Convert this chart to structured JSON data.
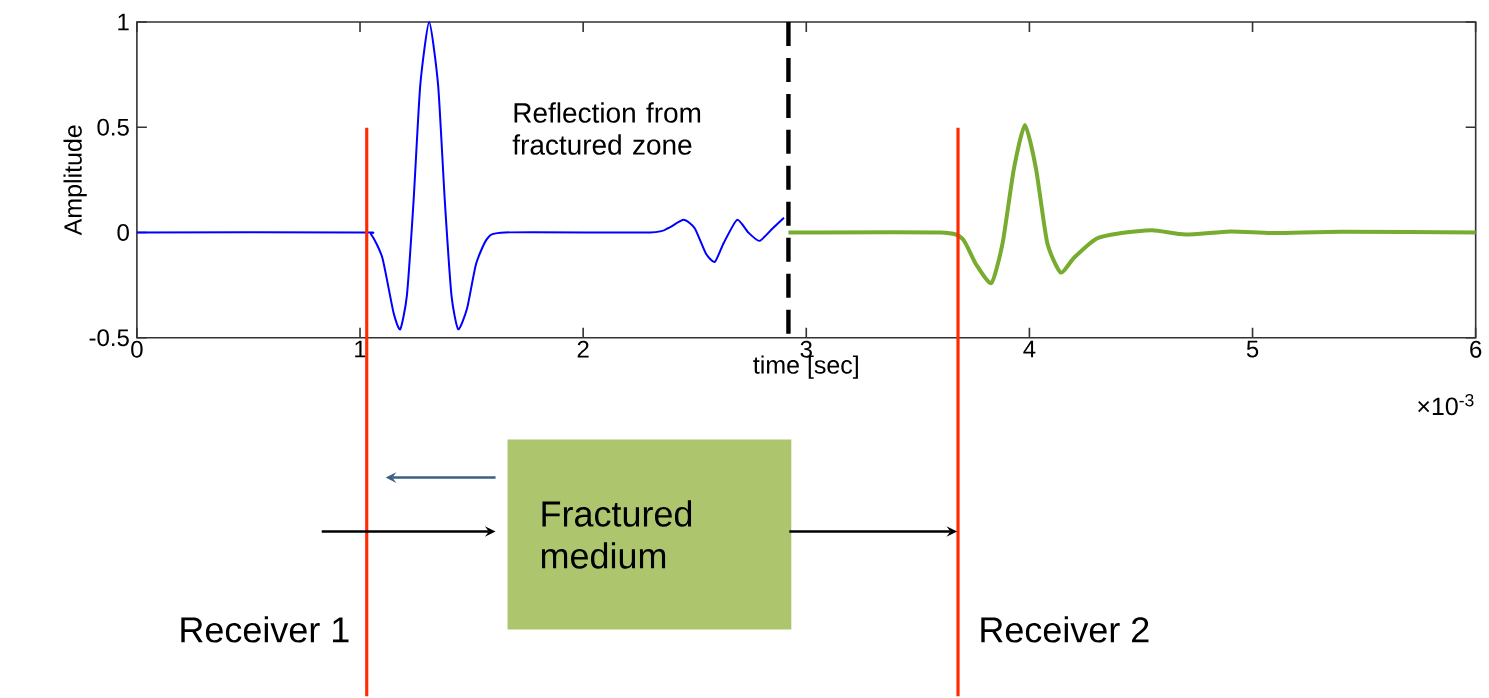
{
  "chart_data": {
    "type": "line",
    "xlabel": "time [sec]",
    "ylabel": "Amplitude",
    "series": [
      {
        "color": "#0000ff",
        "x": [
          0,
          1,
          1.05,
          1.1,
          1.15,
          1.18,
          1.21,
          1.24,
          1.27,
          1.31,
          1.35,
          1.38,
          1.41,
          1.44,
          1.48,
          1.52,
          1.57,
          1.65,
          2.3,
          2.38,
          2.45,
          2.5,
          2.55,
          2.59,
          2.63,
          2.69,
          2.74,
          2.79,
          2.85,
          2.9
        ],
        "values": [
          0,
          0,
          -0.01,
          -0.12,
          -0.38,
          -0.46,
          -0.3,
          0.15,
          0.7,
          1,
          0.7,
          0.15,
          -0.3,
          -0.46,
          -0.36,
          -0.15,
          -0.03,
          0,
          0,
          0.02,
          0.06,
          0.02,
          -0.1,
          -0.14,
          -0.05,
          0.06,
          0,
          -0.04,
          0.02,
          0.07
        ]
      },
      {
        "color": "#77ac30",
        "x": [
          2.92,
          3.6,
          3.7,
          3.76,
          3.83,
          3.88,
          3.93,
          3.98,
          4.03,
          4.08,
          4.14,
          4.2,
          4.3,
          4.4,
          4.55,
          4.7,
          4.9,
          5.1,
          5.4,
          6
        ],
        "values": [
          0,
          0,
          -0.03,
          -0.15,
          -0.24,
          -0.05,
          0.3,
          0.51,
          0.3,
          -0.05,
          -0.19,
          -0.12,
          -0.03,
          -0.005,
          0.01,
          -0.01,
          0.005,
          -0.003,
          0.003,
          0
        ]
      }
    ],
    "xlim": [
      0,
      6
    ],
    "xticks": [
      0,
      1,
      2,
      3,
      4,
      5,
      6
    ],
    "ylim": [
      -0.5,
      1
    ],
    "yticks": [
      -0.5,
      0,
      0.5,
      1
    ],
    "ref_lines": [
      {
        "axis": "x",
        "value": 2.92,
        "label": "Reflection from fractured zone",
        "color": "#000000",
        "line_style": "dashed"
      },
      {
        "axis": "x",
        "value": 1.03,
        "label": "Receiver 1",
        "color": "#ff2a00",
        "line_style": "solid"
      },
      {
        "axis": "x",
        "value": 3.68,
        "label": "Receiver 2",
        "color": "#ff2a00",
        "line_style": "solid"
      }
    ],
    "annotations": [
      "×10$^{-3}$",
      "Fractured medium"
    ],
    "grid": false,
    "marker": "none",
    "line_style": "solid"
  }
}
